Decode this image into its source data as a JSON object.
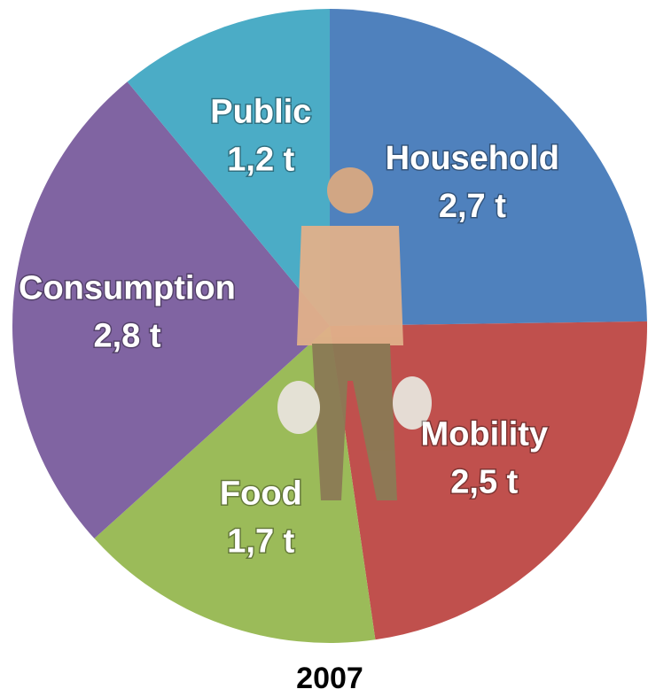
{
  "chart_data": {
    "type": "pie",
    "categories": [
      "Household",
      "Mobility",
      "Food",
      "Consumption",
      "Public"
    ],
    "values": [
      2.7,
      2.5,
      1.7,
      2.8,
      1.2
    ],
    "value_labels": [
      "2,7 t",
      "2,5 t",
      "1,7 t",
      "2,8 t",
      "1,2 t"
    ],
    "colors": [
      "#4f81bd",
      "#c0504d",
      "#9bbb59",
      "#8064a2",
      "#4bacc6"
    ],
    "caption": "2007"
  }
}
